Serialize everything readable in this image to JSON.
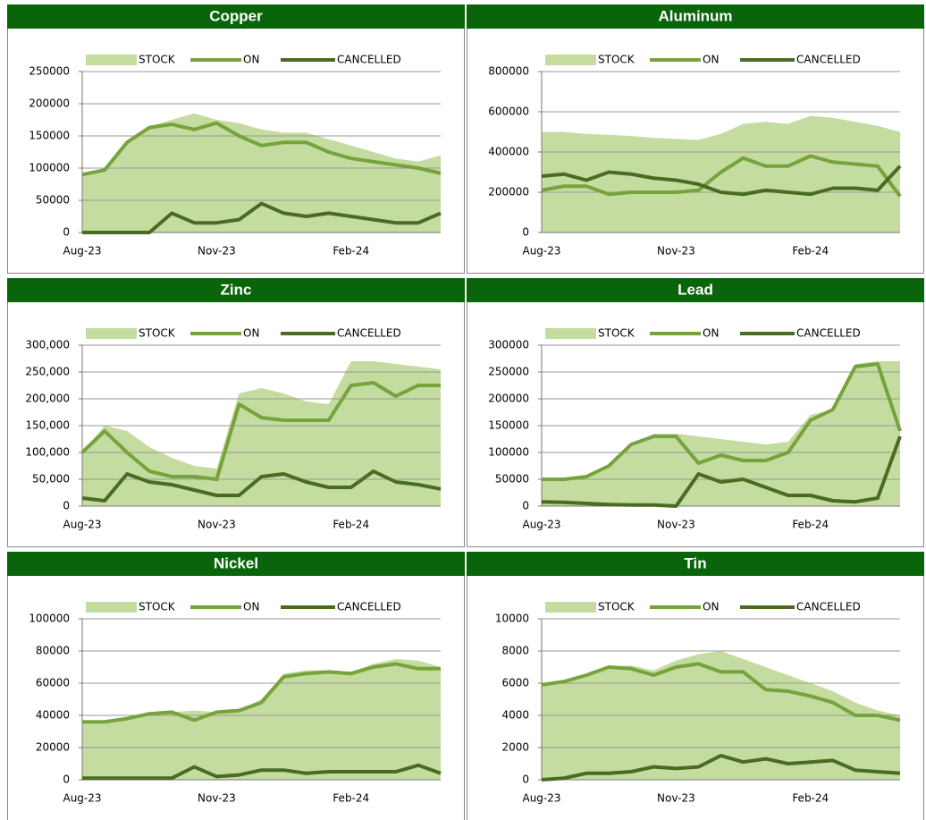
{
  "chart_data": [
    {
      "type": "area-line",
      "title": "Copper",
      "categories": [
        "Aug-23",
        null,
        null,
        null,
        null,
        null,
        "Nov-23",
        null,
        null,
        null,
        null,
        null,
        "Feb-24",
        null,
        null,
        null,
        null
      ],
      "series": [
        {
          "name": "STOCK",
          "color": "#c4dca0",
          "values": [
            90000,
            100000,
            140000,
            165000,
            175000,
            185000,
            175000,
            170000,
            160000,
            155000,
            155000,
            145000,
            135000,
            125000,
            115000,
            110000,
            120000
          ]
        },
        {
          "name": "ON",
          "color": "#76a33c",
          "values": [
            90000,
            97000,
            140000,
            163000,
            168000,
            160000,
            170000,
            150000,
            135000,
            140000,
            140000,
            125000,
            115000,
            110000,
            105000,
            100000,
            92000
          ]
        },
        {
          "name": "CANCELLED",
          "color": "#4a6b22",
          "values": [
            0,
            0,
            0,
            0,
            30000,
            15000,
            15000,
            20000,
            45000,
            30000,
            25000,
            30000,
            25000,
            20000,
            15000,
            15000,
            30000
          ]
        }
      ],
      "ylim": [
        0,
        250000
      ],
      "yticks": [
        0,
        50000,
        100000,
        150000,
        200000,
        250000
      ],
      "grid": true
    },
    {
      "type": "area-line",
      "title": "Aluminum",
      "categories": [
        "Aug-23",
        null,
        null,
        null,
        null,
        null,
        "Nov-23",
        null,
        null,
        null,
        null,
        null,
        "Feb-24",
        null,
        null,
        null,
        null
      ],
      "series": [
        {
          "name": "STOCK",
          "color": "#c4dca0",
          "values": [
            500000,
            500000,
            490000,
            485000,
            480000,
            470000,
            465000,
            460000,
            490000,
            540000,
            550000,
            540000,
            580000,
            570000,
            550000,
            530000,
            500000
          ]
        },
        {
          "name": "ON",
          "color": "#76a33c",
          "values": [
            210000,
            230000,
            230000,
            190000,
            200000,
            200000,
            200000,
            210000,
            300000,
            370000,
            330000,
            330000,
            380000,
            350000,
            340000,
            330000,
            180000
          ]
        },
        {
          "name": "CANCELLED",
          "color": "#4a6b22",
          "values": [
            280000,
            290000,
            260000,
            300000,
            290000,
            270000,
            260000,
            240000,
            200000,
            190000,
            210000,
            200000,
            190000,
            220000,
            220000,
            210000,
            330000
          ]
        }
      ],
      "ylim": [
        0,
        800000
      ],
      "yticks": [
        0,
        200000,
        400000,
        600000,
        800000
      ],
      "grid": true
    },
    {
      "type": "area-line",
      "title": "Zinc",
      "categories": [
        "Aug-23",
        null,
        null,
        null,
        null,
        null,
        "Nov-23",
        null,
        null,
        null,
        null,
        null,
        "Feb-24",
        null,
        null,
        null,
        null
      ],
      "series": [
        {
          "name": "STOCK",
          "color": "#c4dca0",
          "values": [
            100000,
            150000,
            140000,
            110000,
            90000,
            75000,
            70000,
            210000,
            220000,
            210000,
            195000,
            190000,
            270000,
            270000,
            265000,
            260000,
            255000
          ]
        },
        {
          "name": "ON",
          "color": "#76a33c",
          "values": [
            100000,
            140000,
            100000,
            65000,
            55000,
            55000,
            50000,
            190000,
            165000,
            160000,
            160000,
            160000,
            225000,
            230000,
            205000,
            225000,
            225000
          ]
        },
        {
          "name": "CANCELLED",
          "color": "#4a6b22",
          "values": [
            15000,
            10000,
            60000,
            45000,
            40000,
            30000,
            20000,
            20000,
            55000,
            60000,
            45000,
            35000,
            35000,
            65000,
            45000,
            40000,
            32000
          ]
        }
      ],
      "ylim": [
        0,
        300000
      ],
      "yticks": [
        0,
        {
          "value": 50000,
          "label": "50,000"
        },
        {
          "value": 100000,
          "label": "100,000"
        },
        {
          "value": 150000,
          "label": "150,000"
        },
        {
          "value": 200000,
          "label": "200,000"
        },
        {
          "value": 250000,
          "label": "250,000"
        },
        {
          "value": 300000,
          "label": "300,000"
        }
      ],
      "grid": true
    },
    {
      "type": "area-line",
      "title": "Lead",
      "categories": [
        "Aug-23",
        null,
        null,
        null,
        null,
        null,
        "Nov-23",
        null,
        null,
        null,
        null,
        null,
        "Feb-24",
        null,
        null,
        null,
        null
      ],
      "series": [
        {
          "name": "STOCK",
          "color": "#c4dca0",
          "values": [
            50000,
            50000,
            55000,
            75000,
            110000,
            135000,
            135000,
            130000,
            125000,
            120000,
            115000,
            120000,
            170000,
            180000,
            265000,
            270000,
            270000
          ]
        },
        {
          "name": "ON",
          "color": "#76a33c",
          "values": [
            50000,
            50000,
            55000,
            75000,
            115000,
            130000,
            130000,
            80000,
            95000,
            85000,
            85000,
            100000,
            160000,
            180000,
            260000,
            265000,
            140000
          ]
        },
        {
          "name": "CANCELLED",
          "color": "#4a6b22",
          "values": [
            8000,
            7000,
            5000,
            3000,
            2000,
            2000,
            0,
            60000,
            45000,
            50000,
            35000,
            20000,
            20000,
            10000,
            8000,
            15000,
            130000
          ]
        }
      ],
      "ylim": [
        0,
        300000
      ],
      "yticks": [
        0,
        50000,
        100000,
        150000,
        200000,
        250000,
        300000
      ],
      "grid": true
    },
    {
      "type": "area-line",
      "title": "Nickel",
      "categories": [
        "Aug-23",
        null,
        null,
        null,
        null,
        null,
        "Nov-23",
        null,
        null,
        null,
        null,
        null,
        "Feb-24",
        null,
        null,
        null,
        null
      ],
      "series": [
        {
          "name": "STOCK",
          "color": "#c4dca0",
          "values": [
            36000,
            36000,
            38000,
            41000,
            42000,
            43000,
            42000,
            43000,
            50000,
            66000,
            68000,
            68000,
            67000,
            72000,
            75000,
            74000,
            70000
          ]
        },
        {
          "name": "ON",
          "color": "#76a33c",
          "values": [
            36000,
            36000,
            38000,
            41000,
            42000,
            37000,
            42000,
            43000,
            48000,
            64000,
            66000,
            67000,
            66000,
            70000,
            72000,
            69000,
            69000
          ]
        },
        {
          "name": "CANCELLED",
          "color": "#4a6b22",
          "values": [
            1000,
            1000,
            1000,
            1000,
            1000,
            8000,
            2000,
            3000,
            6000,
            6000,
            4000,
            5000,
            5000,
            5000,
            5000,
            9000,
            4000
          ]
        }
      ],
      "ylim": [
        0,
        100000
      ],
      "yticks": [
        0,
        20000,
        40000,
        60000,
        80000,
        100000
      ],
      "grid": true
    },
    {
      "type": "area-line",
      "title": "Tin",
      "categories": [
        "Aug-23",
        null,
        null,
        null,
        null,
        null,
        "Nov-23",
        null,
        null,
        null,
        null,
        null,
        "Feb-24",
        null,
        null,
        null,
        null
      ],
      "series": [
        {
          "name": "STOCK",
          "color": "#c4dca0",
          "values": [
            5900,
            6200,
            6600,
            7000,
            7100,
            6800,
            7400,
            7800,
            8000,
            7500,
            7000,
            6500,
            6000,
            5500,
            4800,
            4300,
            4000
          ]
        },
        {
          "name": "ON",
          "color": "#76a33c",
          "values": [
            5900,
            6100,
            6500,
            7000,
            6900,
            6500,
            7000,
            7200,
            6700,
            6700,
            5600,
            5500,
            5200,
            4800,
            4000,
            4000,
            3700
          ]
        },
        {
          "name": "CANCELLED",
          "color": "#4a6b22",
          "values": [
            0,
            100,
            400,
            400,
            500,
            800,
            700,
            800,
            1500,
            1100,
            1300,
            1000,
            1100,
            1200,
            600,
            500,
            400
          ]
        }
      ],
      "ylim": [
        0,
        10000
      ],
      "yticks": [
        0,
        2000,
        4000,
        6000,
        8000,
        10000
      ],
      "grid": true
    }
  ]
}
